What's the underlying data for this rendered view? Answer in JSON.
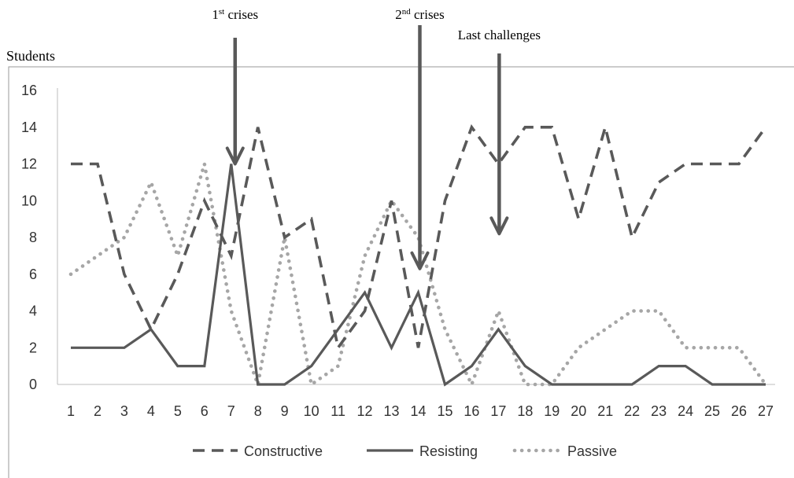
{
  "chart_data": {
    "type": "line",
    "ylabel": "Students",
    "xlabel": "",
    "ylim": [
      0,
      16
    ],
    "yticks": [
      0,
      2,
      4,
      6,
      8,
      10,
      12,
      14,
      16
    ],
    "x": [
      1,
      2,
      3,
      4,
      5,
      6,
      7,
      8,
      9,
      10,
      11,
      12,
      13,
      14,
      15,
      16,
      17,
      18,
      19,
      20,
      21,
      22,
      23,
      24,
      25,
      26,
      27
    ],
    "legend_position": "bottom",
    "grid": false,
    "series": [
      {
        "name": "Constructive",
        "style": "dashed",
        "color": "#595959",
        "values": [
          12,
          12,
          6,
          3,
          6,
          10,
          7,
          14,
          8,
          9,
          2,
          4,
          10,
          2,
          10,
          14,
          12,
          14,
          14,
          9,
          14,
          8,
          11,
          12,
          12,
          12,
          14
        ]
      },
      {
        "name": "Resisting",
        "style": "solid",
        "color": "#595959",
        "values": [
          2,
          2,
          2,
          3,
          1,
          1,
          12,
          0,
          0,
          1,
          3,
          5,
          2,
          5,
          0,
          1,
          3,
          1,
          0,
          0,
          0,
          0,
          1,
          1,
          0,
          0,
          0
        ]
      },
      {
        "name": "Passive",
        "style": "dotted",
        "color": "#a6a6a6",
        "values": [
          6,
          7,
          8,
          11,
          7,
          12,
          4,
          0,
          8,
          0,
          1,
          7,
          10,
          8,
          3,
          0,
          4,
          0,
          0,
          2,
          3,
          4,
          4,
          2,
          2,
          2,
          0
        ]
      }
    ],
    "annotations": [
      {
        "base": "1",
        "sup": "st",
        "rest": " crises",
        "x": 7,
        "y_tip": 12
      },
      {
        "base": "2",
        "sup": "nd",
        "rest": " crises",
        "x": 14,
        "y_tip": 6.3
      },
      {
        "base": "Last challenges",
        "sup": "",
        "rest": "",
        "x": 17,
        "y_tip": 8.2
      }
    ]
  }
}
